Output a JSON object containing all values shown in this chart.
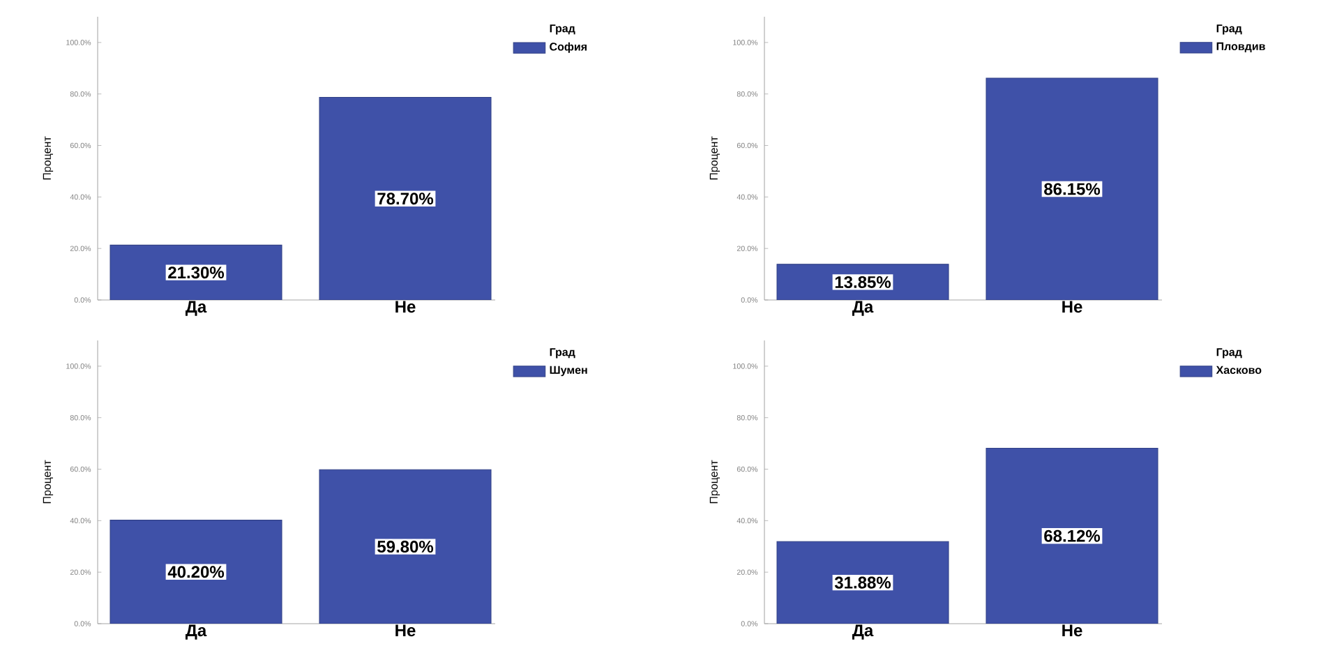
{
  "chart_data": [
    {
      "type": "bar",
      "ylabel": "Процент",
      "legend_title": "Град",
      "legend": "top right",
      "categories": [
        "Да",
        "Не"
      ],
      "series": [
        {
          "name": "София",
          "color": "#3f51a8",
          "values": [
            21.3,
            78.7
          ],
          "value_labels": [
            "21.30%",
            "78.70%"
          ]
        }
      ],
      "ylim": [
        0,
        110
      ],
      "yticks": [
        {
          "value": 0,
          "label": "0.0%"
        },
        {
          "value": 20,
          "label": "20.0%"
        },
        {
          "value": 40,
          "label": "40.0%"
        },
        {
          "value": 60,
          "label": "60.0%"
        },
        {
          "value": 80,
          "label": "80.0%"
        },
        {
          "value": 100,
          "label": "100.0%"
        }
      ]
    },
    {
      "type": "bar",
      "ylabel": "Процент",
      "legend_title": "Град",
      "legend": "top right",
      "categories": [
        "Да",
        "Не"
      ],
      "series": [
        {
          "name": "Пловдив",
          "color": "#3f51a8",
          "values": [
            13.85,
            86.15
          ],
          "value_labels": [
            "13.85%",
            "86.15%"
          ]
        }
      ],
      "ylim": [
        0,
        110
      ],
      "yticks": [
        {
          "value": 0,
          "label": "0.0%"
        },
        {
          "value": 20,
          "label": "20.0%"
        },
        {
          "value": 40,
          "label": "40.0%"
        },
        {
          "value": 60,
          "label": "60.0%"
        },
        {
          "value": 80,
          "label": "80.0%"
        },
        {
          "value": 100,
          "label": "100.0%"
        }
      ]
    },
    {
      "type": "bar",
      "ylabel": "Процент",
      "legend_title": "Град",
      "legend": "top right",
      "categories": [
        "Да",
        "Не"
      ],
      "series": [
        {
          "name": "Шумен",
          "color": "#3f51a8",
          "values": [
            40.2,
            59.8
          ],
          "value_labels": [
            "40.20%",
            "59.80%"
          ]
        }
      ],
      "ylim": [
        0,
        110
      ],
      "yticks": [
        {
          "value": 0,
          "label": "0.0%"
        },
        {
          "value": 20,
          "label": "20.0%"
        },
        {
          "value": 40,
          "label": "40.0%"
        },
        {
          "value": 60,
          "label": "60.0%"
        },
        {
          "value": 80,
          "label": "80.0%"
        },
        {
          "value": 100,
          "label": "100.0%"
        }
      ]
    },
    {
      "type": "bar",
      "ylabel": "Процент",
      "legend_title": "Град",
      "legend": "top right",
      "categories": [
        "Да",
        "Не"
      ],
      "series": [
        {
          "name": "Хасково",
          "color": "#3f51a8",
          "values": [
            31.88,
            68.12
          ],
          "value_labels": [
            "31.88%",
            "68.12%"
          ]
        }
      ],
      "ylim": [
        0,
        110
      ],
      "yticks": [
        {
          "value": 0,
          "label": "0.0%"
        },
        {
          "value": 20,
          "label": "20.0%"
        },
        {
          "value": 40,
          "label": "40.0%"
        },
        {
          "value": 60,
          "label": "60.0%"
        },
        {
          "value": 80,
          "label": "80.0%"
        },
        {
          "value": 100,
          "label": "100.0%"
        }
      ]
    }
  ]
}
